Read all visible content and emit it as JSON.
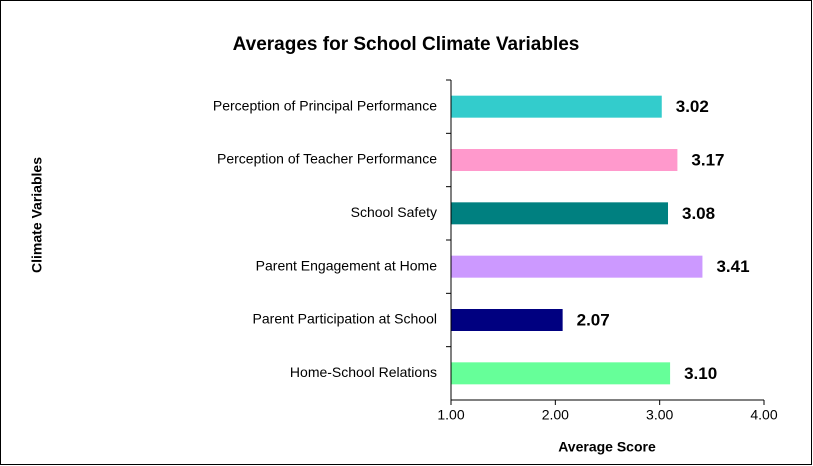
{
  "chart_data": {
    "type": "hbar",
    "title": "Averages for School Climate Variables",
    "xlabel": "Average Score",
    "ylabel": "Climate Variables",
    "categories": [
      "Perception of Principal Performance",
      "Perception of Teacher Performance",
      "School Safety",
      "Parent Engagement at Home",
      "Parent Participation at School",
      "Home-School Relations"
    ],
    "values": [
      3.02,
      3.17,
      3.08,
      3.41,
      2.07,
      3.1
    ],
    "value_labels": [
      "3.02",
      "3.17",
      "3.08",
      "3.41",
      "2.07",
      "3.10"
    ],
    "colors": [
      "#33cccc",
      "#ff99cc",
      "#008080",
      "#cc99ff",
      "#000080",
      "#66ff99"
    ],
    "xlim": [
      1,
      4
    ],
    "xticks": [
      {
        "value": 1,
        "label": "1.00"
      },
      {
        "value": 2,
        "label": "2.00"
      },
      {
        "value": 3,
        "label": "3.00"
      },
      {
        "value": 4,
        "label": "4.00"
      }
    ],
    "grid": false
  }
}
